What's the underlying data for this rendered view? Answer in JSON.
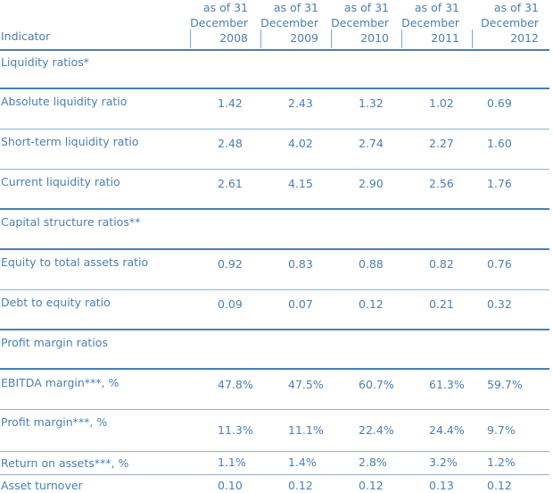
{
  "header": {
    "indicator_label": "Indicator",
    "columns": [
      {
        "line1": "as of 31",
        "line2": "December",
        "line3": "2008"
      },
      {
        "line1": "as of 31",
        "line2": "December",
        "line3": "2009"
      },
      {
        "line1": "as of 31",
        "line2": "December",
        "line3": "2010"
      },
      {
        "line1": "as of 31",
        "line2": "December",
        "line3": "2011"
      },
      {
        "line1": "as of 31",
        "line2": "December",
        "line3": "2012"
      }
    ]
  },
  "sections": {
    "liquidity": {
      "title": "Liquidity ratios*",
      "rows": [
        {
          "label": "Absolute liquidity ratio",
          "values": [
            "1.42",
            "2.43",
            "1.32",
            "1.02",
            "0.69"
          ]
        },
        {
          "label": "Short-term liquidity ratio",
          "values": [
            "2.48",
            "4.02",
            "2.74",
            "2.27",
            "1.60"
          ]
        },
        {
          "label": "Current liquidity ratio",
          "values": [
            "2.61",
            "4.15",
            "2.90",
            "2.56",
            "1.76"
          ]
        }
      ]
    },
    "capital": {
      "title": "Capital structure ratios**",
      "rows": [
        {
          "label": "Equity to total assets ratio",
          "values": [
            "0.92",
            "0.83",
            "0.88",
            "0.82",
            "0.76"
          ]
        },
        {
          "label": "Debt to equity ratio",
          "values": [
            "0.09",
            "0.07",
            "0.12",
            "0.21",
            "0.32"
          ]
        }
      ]
    },
    "profit": {
      "title": "Profit margin ratios",
      "rows": [
        {
          "label": "EBITDA margin***, %",
          "values": [
            "47.8%",
            "47.5%",
            "60.7%",
            "61.3%",
            "59.7%"
          ]
        },
        {
          "label": "Profit margin***, %",
          "values": [
            "11.3%",
            "11.1%",
            "22.4%",
            "24.4%",
            "9.7%"
          ]
        },
        {
          "label": "Return on assets***, %",
          "values": [
            "1.1%",
            "1.4%",
            "2.8%",
            "3.2%",
            "1.2%"
          ]
        },
        {
          "label": "Asset turnover",
          "values": [
            "0.10",
            "0.12",
            "0.12",
            "0.13",
            "0.12"
          ]
        }
      ]
    }
  }
}
